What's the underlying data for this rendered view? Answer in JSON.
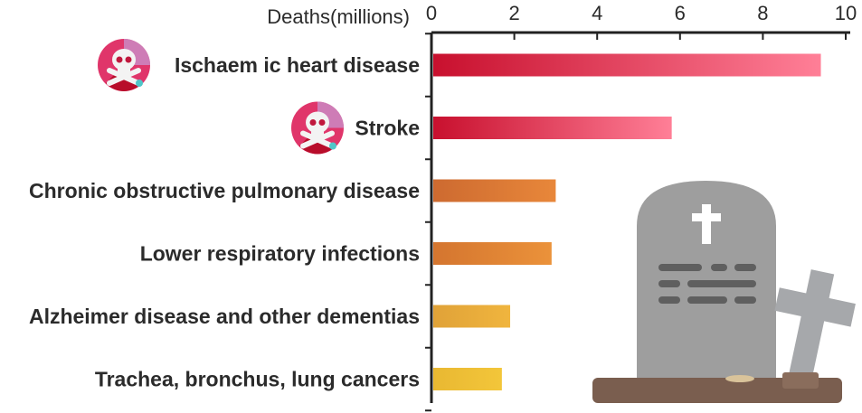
{
  "chart_data": {
    "type": "bar",
    "orientation": "horizontal",
    "xlabel": "Deaths(millions)",
    "xlim": [
      0,
      10
    ],
    "xticks": [
      "0",
      "2",
      "4",
      "6",
      "8",
      "10"
    ],
    "x_axis_position": "top",
    "grid": false,
    "legend": "none",
    "categories": [
      "Ischaem ic heart disease",
      "Stroke",
      "Chronic obstructive pulmonary disease",
      "Lower respiratory infections",
      "Alzheimer disease and other dementias",
      "Trachea, bronchus, lung cancers"
    ],
    "values": [
      9.4,
      5.8,
      3.0,
      2.9,
      1.9,
      1.7
    ],
    "bar_colors": [
      [
        "#c8102e",
        "#ff7f97"
      ],
      [
        "#c8102e",
        "#ff7f97"
      ],
      [
        "#cd6a30",
        "#e8873a"
      ],
      [
        "#d4752f",
        "#eb923a"
      ],
      [
        "#e0a238",
        "#f0b53e"
      ],
      [
        "#e9b832",
        "#f3c63a"
      ]
    ],
    "icons": {
      "skull_categories": [
        0,
        1
      ],
      "decor": "tombstone-with-cross-icon"
    }
  }
}
